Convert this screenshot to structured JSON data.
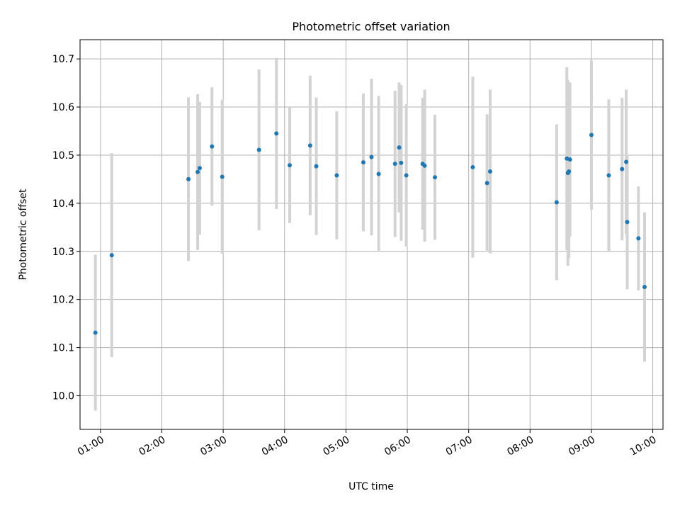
{
  "chart_data": {
    "type": "scatter",
    "title": "Photometric offset variation",
    "xlabel": "UTC time",
    "ylabel": "Photometric offset",
    "xlim": [
      "00:40",
      "10:10"
    ],
    "ylim": [
      9.93,
      10.74
    ],
    "grid": true,
    "x_ticks": [
      "01:00",
      "02:00",
      "03:00",
      "04:00",
      "05:00",
      "06:00",
      "07:00",
      "08:00",
      "09:00",
      "10:00"
    ],
    "y_ticks": [
      "10.0",
      "10.1",
      "10.2",
      "10.3",
      "10.4",
      "10.5",
      "10.6",
      "10.7"
    ],
    "colors": {
      "point": "#1f77b4",
      "errorbar": "#d3d3d3",
      "grid": "#b0b0b0"
    },
    "series": [
      {
        "points": [
          {
            "x": "00:55",
            "y": 10.131,
            "err": 0.162
          },
          {
            "x": "01:11",
            "y": 10.292,
            "err": 0.212
          },
          {
            "x": "02:26",
            "y": 10.45,
            "err": 0.17
          },
          {
            "x": "02:35",
            "y": 10.465,
            "err": 0.162
          },
          {
            "x": "02:37",
            "y": 10.473,
            "err": 0.138
          },
          {
            "x": "02:49",
            "y": 10.518,
            "err": 0.123
          },
          {
            "x": "02:59",
            "y": 10.455,
            "err": 0.16
          },
          {
            "x": "03:35",
            "y": 10.511,
            "err": 0.167
          },
          {
            "x": "03:52",
            "y": 10.545,
            "err": 0.157
          },
          {
            "x": "04:05",
            "y": 10.479,
            "err": 0.12
          },
          {
            "x": "04:25",
            "y": 10.52,
            "err": 0.145
          },
          {
            "x": "04:31",
            "y": 10.477,
            "err": 0.143
          },
          {
            "x": "04:51",
            "y": 10.458,
            "err": 0.133
          },
          {
            "x": "05:17",
            "y": 10.485,
            "err": 0.143
          },
          {
            "x": "05:25",
            "y": 10.496,
            "err": 0.163
          },
          {
            "x": "05:32",
            "y": 10.461,
            "err": 0.162
          },
          {
            "x": "05:48",
            "y": 10.482,
            "err": 0.152
          },
          {
            "x": "05:52",
            "y": 10.516,
            "err": 0.135
          },
          {
            "x": "05:54",
            "y": 10.484,
            "err": 0.162
          },
          {
            "x": "05:59",
            "y": 10.458,
            "err": 0.148
          },
          {
            "x": "06:15",
            "y": 10.482,
            "err": 0.137
          },
          {
            "x": "06:17",
            "y": 10.478,
            "err": 0.158
          },
          {
            "x": "06:27",
            "y": 10.454,
            "err": 0.13
          },
          {
            "x": "07:04",
            "y": 10.475,
            "err": 0.188
          },
          {
            "x": "07:18",
            "y": 10.442,
            "err": 0.143
          },
          {
            "x": "07:21",
            "y": 10.466,
            "err": 0.17
          },
          {
            "x": "08:26",
            "y": 10.402,
            "err": 0.162
          },
          {
            "x": "08:36",
            "y": 10.493,
            "err": 0.19
          },
          {
            "x": "08:37",
            "y": 10.463,
            "err": 0.193
          },
          {
            "x": "08:38",
            "y": 10.466,
            "err": 0.18
          },
          {
            "x": "08:39",
            "y": 10.491,
            "err": 0.16
          },
          {
            "x": "09:00",
            "y": 10.542,
            "err": 0.155
          },
          {
            "x": "09:17",
            "y": 10.458,
            "err": 0.158
          },
          {
            "x": "09:30",
            "y": 10.471,
            "err": 0.148
          },
          {
            "x": "09:34",
            "y": 10.486,
            "err": 0.15
          },
          {
            "x": "09:35",
            "y": 10.361,
            "err": 0.14
          },
          {
            "x": "09:46",
            "y": 10.327,
            "err": 0.108
          },
          {
            "x": "09:52",
            "y": 10.226,
            "err": 0.155
          }
        ]
      }
    ]
  }
}
